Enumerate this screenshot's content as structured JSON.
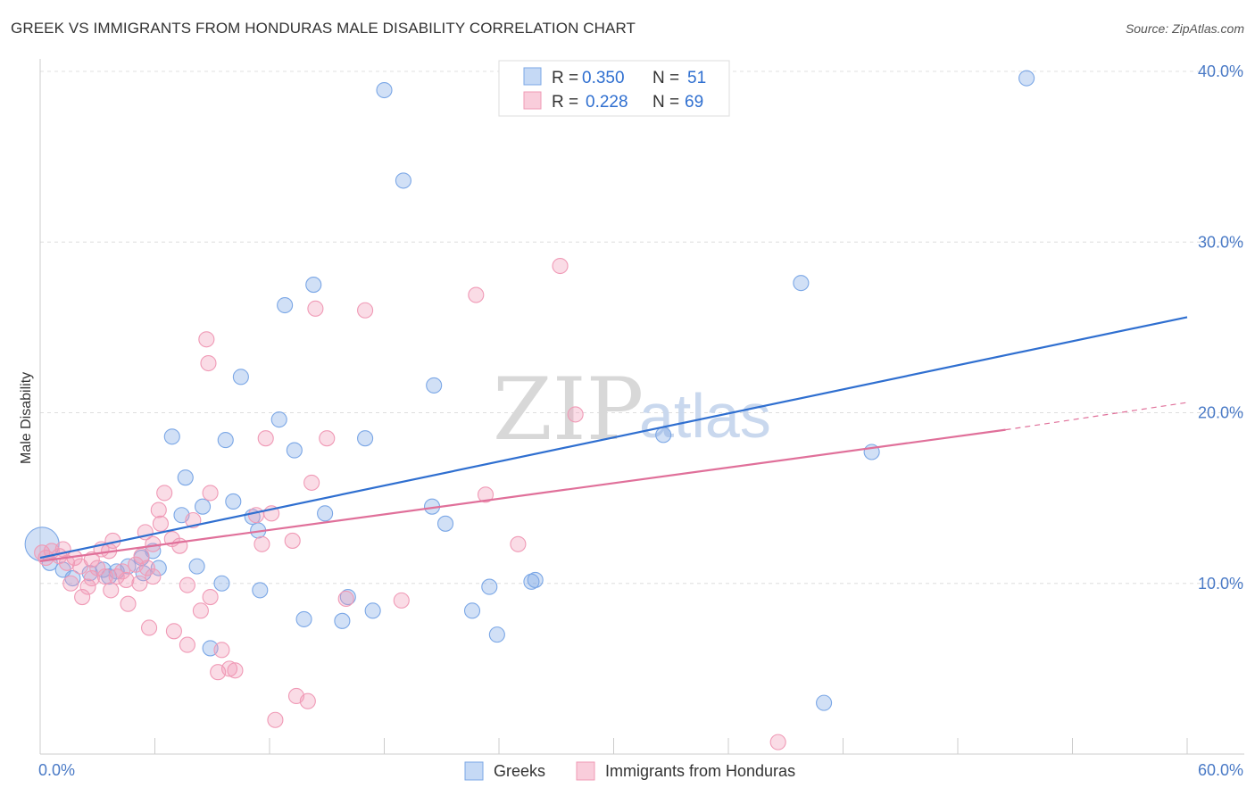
{
  "title": "GREEK VS IMMIGRANTS FROM HONDURAS MALE DISABILITY CORRELATION CHART",
  "source": "Source: ZipAtlas.com",
  "watermark": {
    "zip": "ZIP",
    "atlas": "atlas"
  },
  "legend": {
    "r_label": "R =",
    "n_label": "N =",
    "series": [
      {
        "name": "Greeks",
        "r": "0.350",
        "n": "51"
      },
      {
        "name": "Immigrants from Honduras",
        "r": "0.228",
        "n": "69"
      }
    ]
  },
  "chart_data": {
    "type": "scatter",
    "ylabel": "Male Disability",
    "xlim": [
      0,
      60
    ],
    "ylim": [
      0,
      40
    ],
    "x_tick_labels": [
      "0.0%",
      "60.0%"
    ],
    "y_ticks": [
      10,
      20,
      30,
      40
    ],
    "y_tick_labels": [
      "10.0%",
      "20.0%",
      "30.0%",
      "40.0%"
    ],
    "colors": {
      "Greeks": "#7ba7e6",
      "Immigrants from Honduras": "#f09ab6",
      "Greeks_line": "#2f6fd0",
      "Immigrants from Honduras_line": "#e0709a"
    },
    "series": [
      {
        "name": "Greeks",
        "trend": {
          "x0": 0,
          "y0": 11.5,
          "x1": 60,
          "y1": 25.6
        },
        "points": [
          [
            0.1,
            12.3
          ],
          [
            0.5,
            11.2
          ],
          [
            1.2,
            10.8
          ],
          [
            1.7,
            10.3
          ],
          [
            2.6,
            10.6
          ],
          [
            3.3,
            10.8
          ],
          [
            3.6,
            10.4
          ],
          [
            4.0,
            10.7
          ],
          [
            4.6,
            11.0
          ],
          [
            5.3,
            11.5
          ],
          [
            5.4,
            10.6
          ],
          [
            5.9,
            11.9
          ],
          [
            6.2,
            10.9
          ],
          [
            6.9,
            18.6
          ],
          [
            7.4,
            14.0
          ],
          [
            7.6,
            16.2
          ],
          [
            8.2,
            11.0
          ],
          [
            8.5,
            14.5
          ],
          [
            8.9,
            6.2
          ],
          [
            9.5,
            10.0
          ],
          [
            9.7,
            18.4
          ],
          [
            10.1,
            14.8
          ],
          [
            10.5,
            22.1
          ],
          [
            11.1,
            13.9
          ],
          [
            11.4,
            13.1
          ],
          [
            11.5,
            9.6
          ],
          [
            12.5,
            19.6
          ],
          [
            12.8,
            26.3
          ],
          [
            13.3,
            17.8
          ],
          [
            13.8,
            7.9
          ],
          [
            14.3,
            27.5
          ],
          [
            14.9,
            14.1
          ],
          [
            15.8,
            7.8
          ],
          [
            16.1,
            9.2
          ],
          [
            17.0,
            18.5
          ],
          [
            17.4,
            8.4
          ],
          [
            18.0,
            38.9
          ],
          [
            19.0,
            33.6
          ],
          [
            20.5,
            14.5
          ],
          [
            20.6,
            21.6
          ],
          [
            21.2,
            13.5
          ],
          [
            22.6,
            8.4
          ],
          [
            23.5,
            9.8
          ],
          [
            23.9,
            7.0
          ],
          [
            25.7,
            10.1
          ],
          [
            25.9,
            10.2
          ],
          [
            32.6,
            18.7
          ],
          [
            39.8,
            27.6
          ],
          [
            43.5,
            17.7
          ],
          [
            41.0,
            3.0
          ],
          [
            51.6,
            39.6
          ]
        ]
      },
      {
        "name": "Immigrants from Honduras",
        "trend": {
          "x0": 0,
          "y0": 11.3,
          "x1": 50.5,
          "y1": 19.0,
          "x_dash_end": 60,
          "y_dash_end": 20.6
        },
        "points": [
          [
            0.1,
            11.8
          ],
          [
            0.3,
            11.5
          ],
          [
            0.6,
            11.9
          ],
          [
            1.0,
            11.6
          ],
          [
            1.2,
            12.0
          ],
          [
            1.4,
            11.2
          ],
          [
            1.6,
            10.0
          ],
          [
            1.8,
            11.5
          ],
          [
            2.1,
            11.0
          ],
          [
            2.2,
            9.2
          ],
          [
            2.5,
            9.8
          ],
          [
            2.7,
            10.3
          ],
          [
            3.0,
            10.9
          ],
          [
            3.2,
            12.0
          ],
          [
            3.4,
            10.4
          ],
          [
            3.6,
            11.9
          ],
          [
            3.7,
            9.6
          ],
          [
            3.8,
            12.5
          ],
          [
            4.0,
            10.4
          ],
          [
            4.3,
            10.7
          ],
          [
            4.5,
            10.2
          ],
          [
            4.6,
            8.8
          ],
          [
            5.0,
            11.1
          ],
          [
            5.2,
            10.0
          ],
          [
            5.3,
            11.6
          ],
          [
            5.5,
            13.0
          ],
          [
            5.6,
            10.9
          ],
          [
            5.7,
            7.4
          ],
          [
            5.9,
            10.4
          ],
          [
            5.9,
            12.3
          ],
          [
            6.2,
            14.3
          ],
          [
            6.3,
            13.5
          ],
          [
            6.5,
            15.3
          ],
          [
            6.9,
            12.6
          ],
          [
            7.0,
            7.2
          ],
          [
            7.3,
            12.2
          ],
          [
            7.7,
            6.4
          ],
          [
            7.7,
            9.9
          ],
          [
            8.0,
            13.7
          ],
          [
            8.4,
            8.4
          ],
          [
            8.7,
            24.3
          ],
          [
            8.8,
            22.9
          ],
          [
            8.9,
            9.2
          ],
          [
            8.9,
            15.3
          ],
          [
            9.3,
            4.8
          ],
          [
            9.5,
            6.1
          ],
          [
            9.9,
            5.0
          ],
          [
            10.2,
            4.9
          ],
          [
            11.3,
            14.0
          ],
          [
            11.6,
            12.3
          ],
          [
            11.8,
            18.5
          ],
          [
            12.1,
            14.1
          ],
          [
            12.3,
            2.0
          ],
          [
            13.2,
            12.5
          ],
          [
            13.4,
            3.4
          ],
          [
            14.0,
            3.1
          ],
          [
            14.2,
            15.9
          ],
          [
            14.4,
            26.1
          ],
          [
            15.0,
            18.5
          ],
          [
            16.0,
            9.1
          ],
          [
            17.0,
            26.0
          ],
          [
            18.9,
            9.0
          ],
          [
            22.8,
            26.9
          ],
          [
            23.3,
            15.2
          ],
          [
            25.0,
            12.3
          ],
          [
            27.2,
            28.6
          ],
          [
            28.0,
            19.9
          ],
          [
            38.6,
            0.7
          ],
          [
            2.7,
            11.4
          ]
        ]
      }
    ]
  }
}
